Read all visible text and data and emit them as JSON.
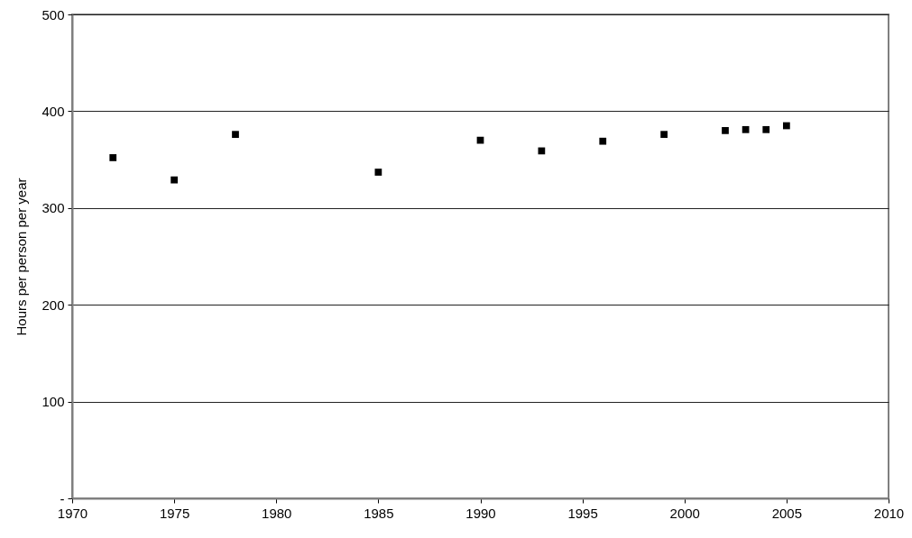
{
  "chart_data": {
    "type": "scatter",
    "ylabel": "Hours per person per year",
    "x": [
      1972,
      1975,
      1978,
      1985,
      1990,
      1993,
      1996,
      1999,
      2002,
      2003,
      2004,
      2005
    ],
    "values": [
      352,
      329,
      376,
      337,
      370,
      359,
      369,
      376,
      380,
      381,
      381,
      385
    ],
    "color": "#000000",
    "marker": "square",
    "xlim": [
      1970,
      2010
    ],
    "xticks": [
      1970,
      1975,
      1980,
      1985,
      1990,
      1995,
      2000,
      2005,
      2010
    ],
    "ylim": [
      0,
      500
    ],
    "yticks": [
      {
        "value": 0,
        "label": "-"
      },
      100,
      200,
      300,
      400,
      500
    ],
    "grid": "y"
  }
}
